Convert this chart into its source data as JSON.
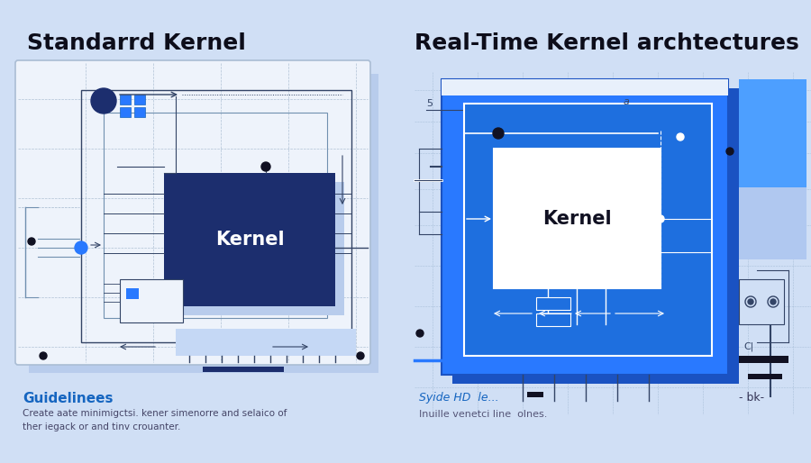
{
  "bg_color": "#d0dff5",
  "title_left": "Standarrd Kernel",
  "title_right": "Real-Time Kernel archtectures",
  "title_color": "#0d0d1a",
  "title_fontsize": 18,
  "kernel_label": "Kernel",
  "left_kernel_text_color": "#ffffff",
  "right_kernel_text_color": "#111122",
  "kernel_fontsize": 15,
  "left_panel_bg": "#eef3fb",
  "left_panel_border": "#aabdd4",
  "left_kernel_bg": "#1c2e6e",
  "left_shadow_color": "#b8ccec",
  "right_panel_bg": "#2979ff",
  "right_panel_dark": "#1a52c2",
  "right_kernel_bg": "#ffffff",
  "right_accent_bg": "#4d9fff",
  "right_accent_dark": "#b0c8f0",
  "guide_title": "Guidelinees",
  "guide_title_color": "#1565c0",
  "guide_text": "Create aate minimigctsi. kener simenorre and selaico of\nther iegack or and tinv crouanter.",
  "guide_text_color": "#444466",
  "right_caption1": "Syide HD  le...",
  "right_caption2": "Inuille venetci line  olnes.",
  "right_caption_color": "#1565c0",
  "right_caption2_color": "#555577",
  "right_note": "- bk-",
  "right_note_color": "#333355",
  "line_dark": "#334466",
  "line_mid": "#7090b0",
  "line_light": "#99bbdd",
  "white": "#ffffff"
}
